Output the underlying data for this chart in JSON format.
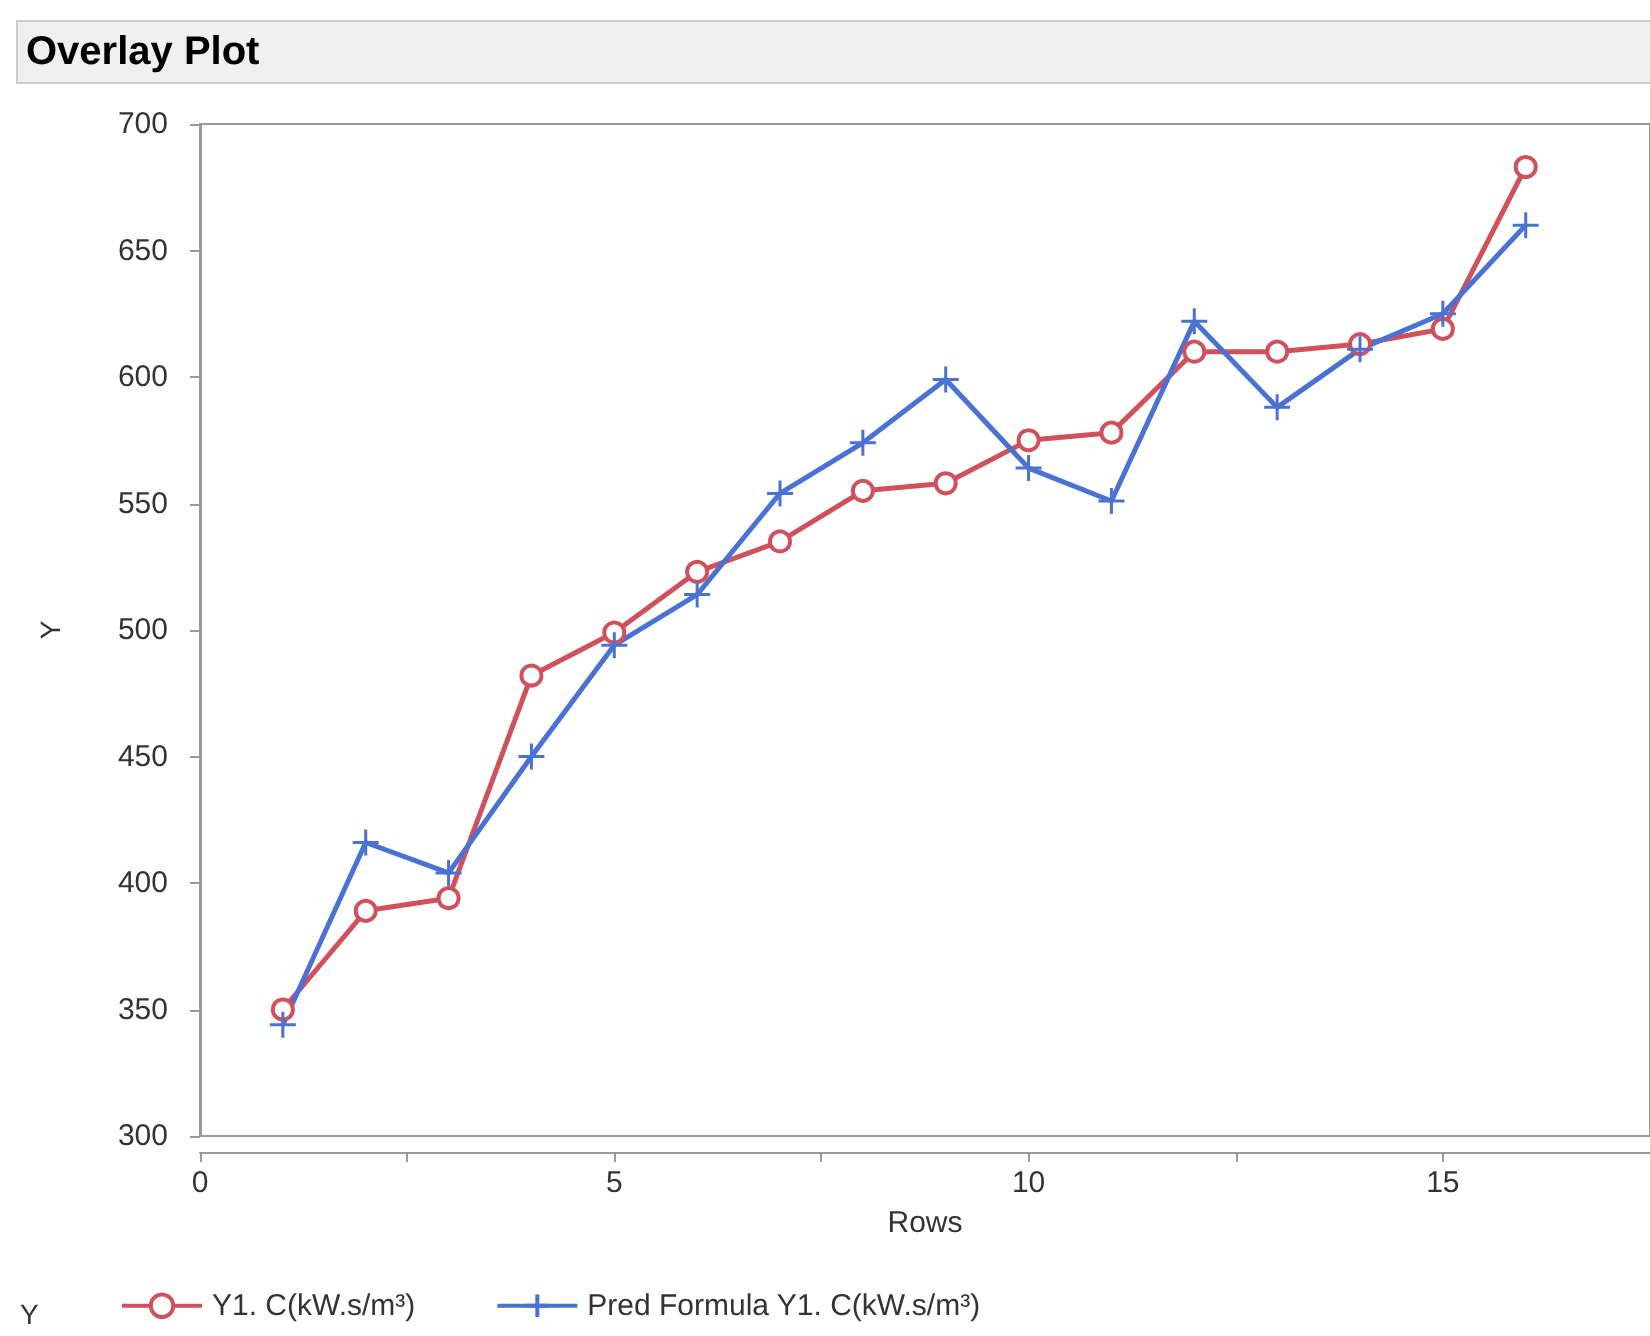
{
  "chart_data": {
    "type": "line",
    "title": "Overlay Plot",
    "xlabel": "Rows",
    "ylabel": "Y",
    "legend_title": "Y",
    "legend": "bottom",
    "grid": false,
    "xlim": [
      0,
      17.5
    ],
    "xticks": [
      0,
      {
        "value": 2.5,
        "label": null
      },
      5,
      {
        "value": 7.5,
        "label": null
      },
      10,
      {
        "value": 12.5,
        "label": null
      },
      15
    ],
    "ylim": [
      300,
      700
    ],
    "yticks": [
      300,
      350,
      400,
      450,
      500,
      550,
      600,
      650,
      700
    ],
    "x": [
      1,
      2,
      3,
      4,
      5,
      6,
      7,
      8,
      9,
      10,
      11,
      12,
      13,
      14,
      15,
      16
    ],
    "series": [
      {
        "name": "Y1. C(kW.s/m³)",
        "color": "#d0505c",
        "marker": "circle",
        "values": [
          350,
          389,
          394,
          482,
          499,
          523,
          535,
          555,
          558,
          575,
          578,
          610,
          610,
          613,
          619,
          683
        ]
      },
      {
        "name": "Pred Formula Y1. C(kW.s/m³)",
        "color": "#4a72d4",
        "marker": "cross",
        "values": [
          344,
          416,
          404,
          450,
          494,
          514,
          554,
          574,
          599,
          564,
          551,
          622,
          588,
          611,
          625,
          660
        ]
      }
    ]
  }
}
